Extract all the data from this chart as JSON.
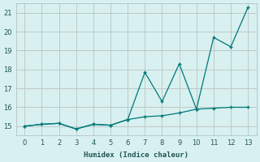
{
  "xlabel": "Humidex (Indice chaleur)",
  "bg_color": "#d8f0f0",
  "grid_color": "#c0c8c8",
  "line_color": "#007878",
  "xlim": [
    -0.5,
    13.5
  ],
  "ylim": [
    14.5,
    21.5
  ],
  "xticks": [
    0,
    1,
    2,
    3,
    4,
    5,
    6,
    7,
    8,
    9,
    10,
    11,
    12,
    13
  ],
  "yticks": [
    15,
    16,
    17,
    18,
    19,
    20,
    21
  ],
  "line1_x": [
    0,
    1,
    2,
    3,
    4,
    5,
    6,
    7,
    8,
    9,
    10,
    11,
    12,
    13
  ],
  "line1_y": [
    15.0,
    15.1,
    15.15,
    14.85,
    15.1,
    15.05,
    15.35,
    15.5,
    15.55,
    15.7,
    15.9,
    15.95,
    16.0,
    16.0
  ],
  "line2_x": [
    0,
    1,
    2,
    3,
    4,
    5,
    6,
    7,
    8,
    9,
    10,
    11,
    12,
    13
  ],
  "line2_y": [
    15.0,
    15.1,
    15.15,
    14.85,
    15.1,
    15.05,
    15.35,
    17.85,
    16.3,
    18.3,
    15.9,
    19.7,
    19.2,
    21.3
  ]
}
